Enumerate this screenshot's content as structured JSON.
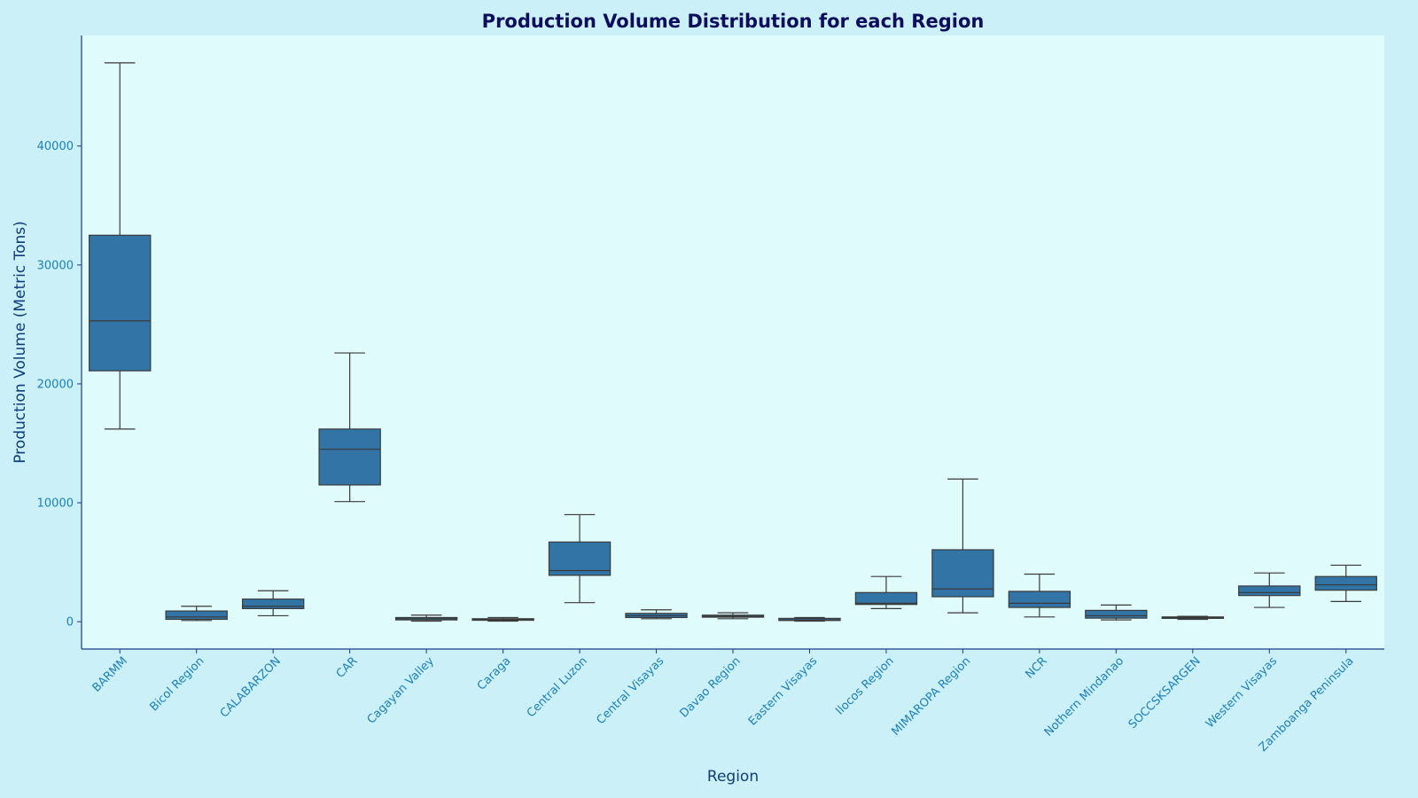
{
  "chart_data": {
    "type": "box",
    "title": "Production Volume Distribution for each Region",
    "xlabel": "Region",
    "ylabel": "Production Volume (Metric Tons)",
    "ylim": [
      -2300,
      49300
    ],
    "yticks": [
      0,
      10000,
      20000,
      30000,
      40000
    ],
    "grid": false,
    "legend": "none",
    "colors": {
      "box_fill": "#3174a5",
      "box_line": "#3a3a3a",
      "plot_bg": "#e0fbfc",
      "figure_bg": "#cbf0f7",
      "axis_line": "#1a3a8a"
    },
    "categories": [
      "BARMM",
      "Bicol Region",
      "CALABARZON",
      "CAR",
      "Cagayan Valley",
      "Caraga",
      "Central Luzon",
      "Central Visayas",
      "Davao Region",
      "Eastern Visayas",
      "Ilocos Region",
      "MIMAROPA Region",
      "NCR",
      "Nothern Mindanao",
      "SOCCSKSARGEN",
      "Western Visayas",
      "Zamboanga Peninsula"
    ],
    "boxes": [
      {
        "min": 16200,
        "q1": 21100,
        "median": 25300,
        "q3": 32500,
        "max": 47000
      },
      {
        "min": 100,
        "q1": 200,
        "median": 400,
        "q3": 900,
        "max": 1300
      },
      {
        "min": 500,
        "q1": 1100,
        "median": 1300,
        "q3": 1900,
        "max": 2600
      },
      {
        "min": 10100,
        "q1": 11500,
        "median": 14500,
        "q3": 16200,
        "max": 22600
      },
      {
        "min": 50,
        "q1": 150,
        "median": 250,
        "q3": 350,
        "max": 550
      },
      {
        "min": 50,
        "q1": 120,
        "median": 180,
        "q3": 250,
        "max": 350
      },
      {
        "min": 1600,
        "q1": 3900,
        "median": 4300,
        "q3": 6700,
        "max": 9000
      },
      {
        "min": 250,
        "q1": 350,
        "median": 500,
        "q3": 700,
        "max": 1000
      },
      {
        "min": 250,
        "q1": 380,
        "median": 450,
        "q3": 550,
        "max": 750
      },
      {
        "min": 50,
        "q1": 100,
        "median": 150,
        "q3": 280,
        "max": 350
      },
      {
        "min": 1100,
        "q1": 1450,
        "median": 1550,
        "q3": 2450,
        "max": 3800
      },
      {
        "min": 750,
        "q1": 2100,
        "median": 2750,
        "q3": 6050,
        "max": 12000
      },
      {
        "min": 400,
        "q1": 1200,
        "median": 1550,
        "q3": 2550,
        "max": 4000
      },
      {
        "min": 150,
        "q1": 300,
        "median": 500,
        "q3": 950,
        "max": 1400
      },
      {
        "min": 200,
        "q1": 280,
        "median": 330,
        "q3": 400,
        "max": 450
      },
      {
        "min": 1200,
        "q1": 2200,
        "median": 2450,
        "q3": 3000,
        "max": 4100
      },
      {
        "min": 1700,
        "q1": 2650,
        "median": 3100,
        "q3": 3800,
        "max": 4750
      }
    ]
  }
}
